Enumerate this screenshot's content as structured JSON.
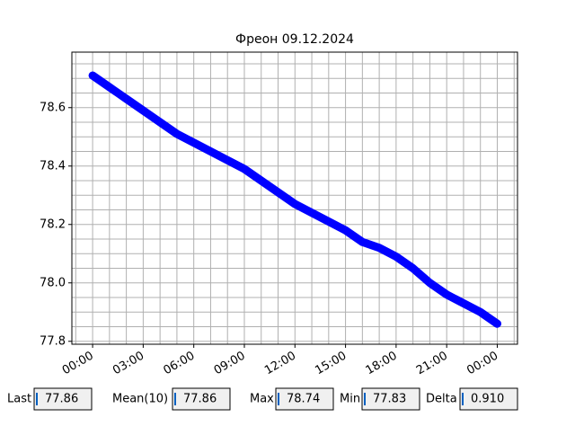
{
  "chart_data": {
    "type": "line",
    "title": "Фреон 09.12.2024",
    "x": [
      0,
      1,
      2,
      3,
      4,
      5,
      6,
      7,
      8,
      9,
      10,
      11,
      12,
      13,
      14,
      15,
      16,
      17,
      18,
      19,
      20,
      21,
      22,
      23,
      24
    ],
    "values": [
      78.71,
      78.67,
      78.63,
      78.59,
      78.55,
      78.51,
      78.48,
      78.45,
      78.42,
      78.39,
      78.35,
      78.31,
      78.27,
      78.24,
      78.21,
      78.18,
      78.14,
      78.12,
      78.09,
      78.05,
      78.0,
      77.96,
      77.93,
      77.9,
      77.86
    ],
    "color": "#0000ff",
    "xlim": [
      -1.23,
      25.2
    ],
    "xticks": [
      {
        "value": 0,
        "label": "00:00"
      },
      {
        "value": 3,
        "label": "03:00"
      },
      {
        "value": 6,
        "label": "06:00"
      },
      {
        "value": 9,
        "label": "09:00"
      },
      {
        "value": 12,
        "label": "12:00"
      },
      {
        "value": 15,
        "label": "15:00"
      },
      {
        "value": 18,
        "label": "18:00"
      },
      {
        "value": 21,
        "label": "21:00"
      },
      {
        "value": 24,
        "label": "00:00"
      }
    ],
    "ylim": [
      77.79,
      78.79
    ],
    "yticks": [
      77.8,
      {
        "value": 78.0,
        "label": "78.0"
      },
      78.2,
      78.4,
      78.6
    ],
    "grid": true
  },
  "fields": [
    {
      "label": "Last",
      "value": "77.86"
    },
    {
      "label": "Mean(10)",
      "value": "77.86"
    },
    {
      "label": "Max",
      "value": "78.74"
    },
    {
      "label": "Min",
      "value": "77.83"
    },
    {
      "label": "Delta",
      "value": "0.910"
    }
  ]
}
